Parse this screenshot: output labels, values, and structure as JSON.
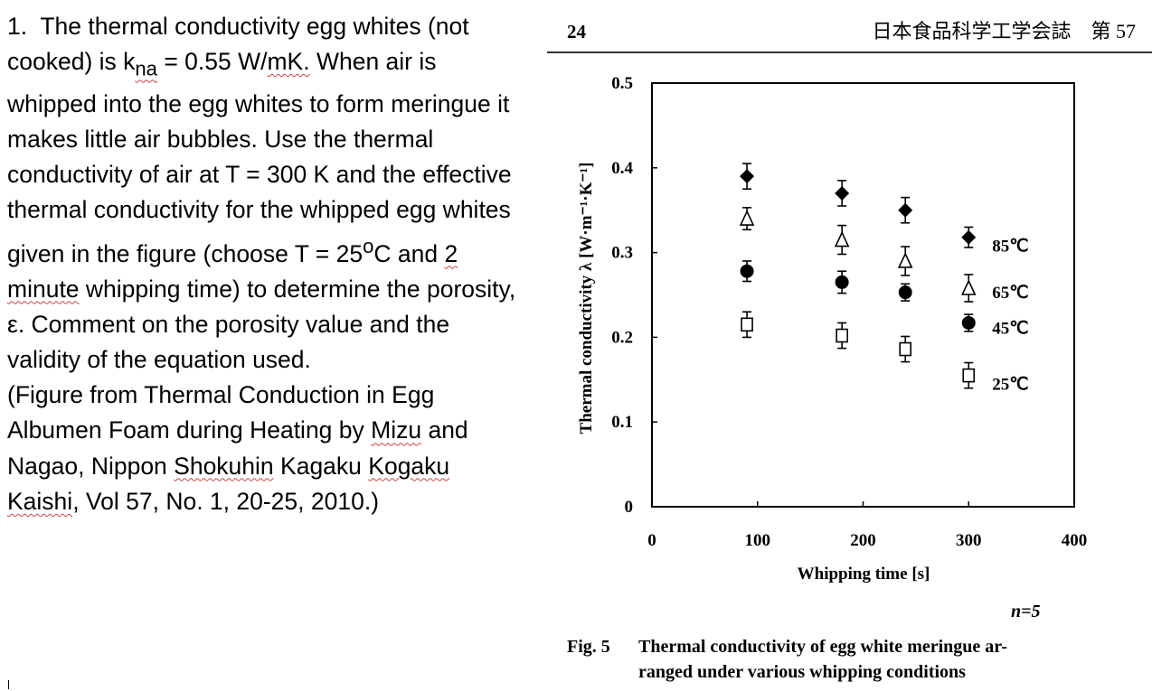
{
  "problem": {
    "number": "1.",
    "t1": "The thermal conductivity egg whites (not cooked) is k",
    "k_sub": "na",
    "t2": " = 0.55 W/",
    "t2b": "mK.",
    "t3": "  When air is whipped into the egg whites to form meringue it makes little air bubbles.  Use the thermal conductivity of air at T = 300 K and the effective thermal conductivity for the whipped egg whites given in the figure (choose T = 25",
    "deg_sup": "o",
    "t4": "C and ",
    "t4b": "2 minute",
    "t5": " whipping time) to determine the porosity, ε.  Comment on the porosity value and the validity of the equation used.",
    "c1": "(Figure from Thermal Conduction in Egg Albumen Foam during Heating by ",
    "c_mizu": "Mizu",
    "c2": " and Nagao, Nippon ",
    "c_shok": "Shokuhin",
    "c3": " Kagaku ",
    "c_kog": "Kogaku",
    "c4": " ",
    "c_kai": "Kaishi",
    "c5": ", Vol 57, No. 1, 20-25, 2010.)"
  },
  "figure": {
    "page_number": "24",
    "journal_header": "日本食品科学工学会誌　第 57",
    "sample_size": "n=5",
    "caption_label": "Fig. 5",
    "caption_line1": "Thermal conductivity of egg white meringue ar-",
    "caption_line2": "ranged under various whipping conditions"
  },
  "chart_data": {
    "type": "scatter",
    "xlabel": "Whipping time [s]",
    "ylabel": "Thermal conductivity λ [W·m⁻¹·K⁻¹]",
    "xlim": [
      0,
      400
    ],
    "ylim": [
      0,
      0.5
    ],
    "xticks": [
      0,
      100,
      200,
      300,
      400
    ],
    "yticks": [
      0,
      0.1,
      0.2,
      0.3,
      0.4,
      0.5
    ],
    "grid": false,
    "legend_placement": "right of last points",
    "series": [
      {
        "name": "85℃",
        "marker": "filled-diamond",
        "x": [
          90,
          180,
          240,
          300
        ],
        "y": [
          0.39,
          0.37,
          0.35,
          0.318
        ],
        "err": [
          0.015,
          0.015,
          0.015,
          0.012
        ]
      },
      {
        "name": "65℃",
        "marker": "open-triangle",
        "x": [
          90,
          180,
          240,
          300
        ],
        "y": [
          0.34,
          0.315,
          0.29,
          0.258
        ],
        "err": [
          0.013,
          0.017,
          0.017,
          0.016
        ]
      },
      {
        "name": "45℃",
        "marker": "filled-circle",
        "x": [
          90,
          180,
          240,
          300
        ],
        "y": [
          0.278,
          0.265,
          0.253,
          0.217
        ],
        "err": [
          0.012,
          0.013,
          0.01,
          0.01
        ]
      },
      {
        "name": "25℃",
        "marker": "open-square",
        "x": [
          90,
          180,
          240,
          300
        ],
        "y": [
          0.215,
          0.202,
          0.186,
          0.155
        ],
        "err": [
          0.015,
          0.015,
          0.015,
          0.015
        ]
      }
    ]
  }
}
